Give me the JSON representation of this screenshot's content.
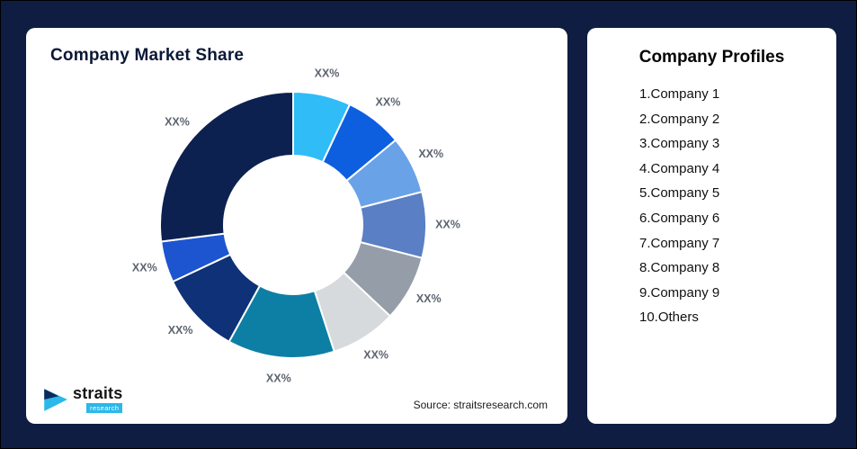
{
  "theme": {
    "background": "#0e1d41",
    "card_bg": "#ffffff",
    "accent": "#2bb8ea",
    "title_color": "#0b1836",
    "label_color": "#5d6470"
  },
  "chart_card": {
    "title": "Company Market Share",
    "source": "Source: straitsresearch.com"
  },
  "logo": {
    "name": "straits",
    "sub": "research"
  },
  "profiles": {
    "title": "Company Profiles",
    "items": [
      "1.Company 1",
      "2.Company 2",
      "3.Company 3",
      "4.Company 4",
      "5.Company 5",
      "6.Company 6",
      "7.Company 7",
      "8.Company 8",
      "9.Company 9",
      "10.Others"
    ]
  },
  "chart_data": {
    "type": "pie",
    "subtype": "donut",
    "title": "Company Market Share",
    "start_angle_deg": 0,
    "direction": "clockwise",
    "inner_radius_ratio": 0.52,
    "legend_position": "none",
    "segments": [
      {
        "label": "XX%",
        "value_pct_estimated": 7,
        "color": "#2fbcf7"
      },
      {
        "label": "XX%",
        "value_pct_estimated": 7,
        "color": "#0d5fe0"
      },
      {
        "label": "XX%",
        "value_pct_estimated": 7,
        "color": "#6aa2e8"
      },
      {
        "label": "XX%",
        "value_pct_estimated": 8,
        "color": "#5a7fc4"
      },
      {
        "label": "XX%",
        "value_pct_estimated": 8,
        "color": "#959da9"
      },
      {
        "label": "XX%",
        "value_pct_estimated": 8,
        "color": "#d7dadd"
      },
      {
        "label": "XX%",
        "value_pct_estimated": 13,
        "color": "#0e7fa4"
      },
      {
        "label": "XX%",
        "value_pct_estimated": 10,
        "color": "#0e3177"
      },
      {
        "label": "XX%",
        "value_pct_estimated": 5,
        "color": "#1d54d0"
      },
      {
        "label": "XX%",
        "value_pct_estimated": 27,
        "color": "#0d2150"
      }
    ],
    "source": "Source: straitsresearch.com"
  }
}
